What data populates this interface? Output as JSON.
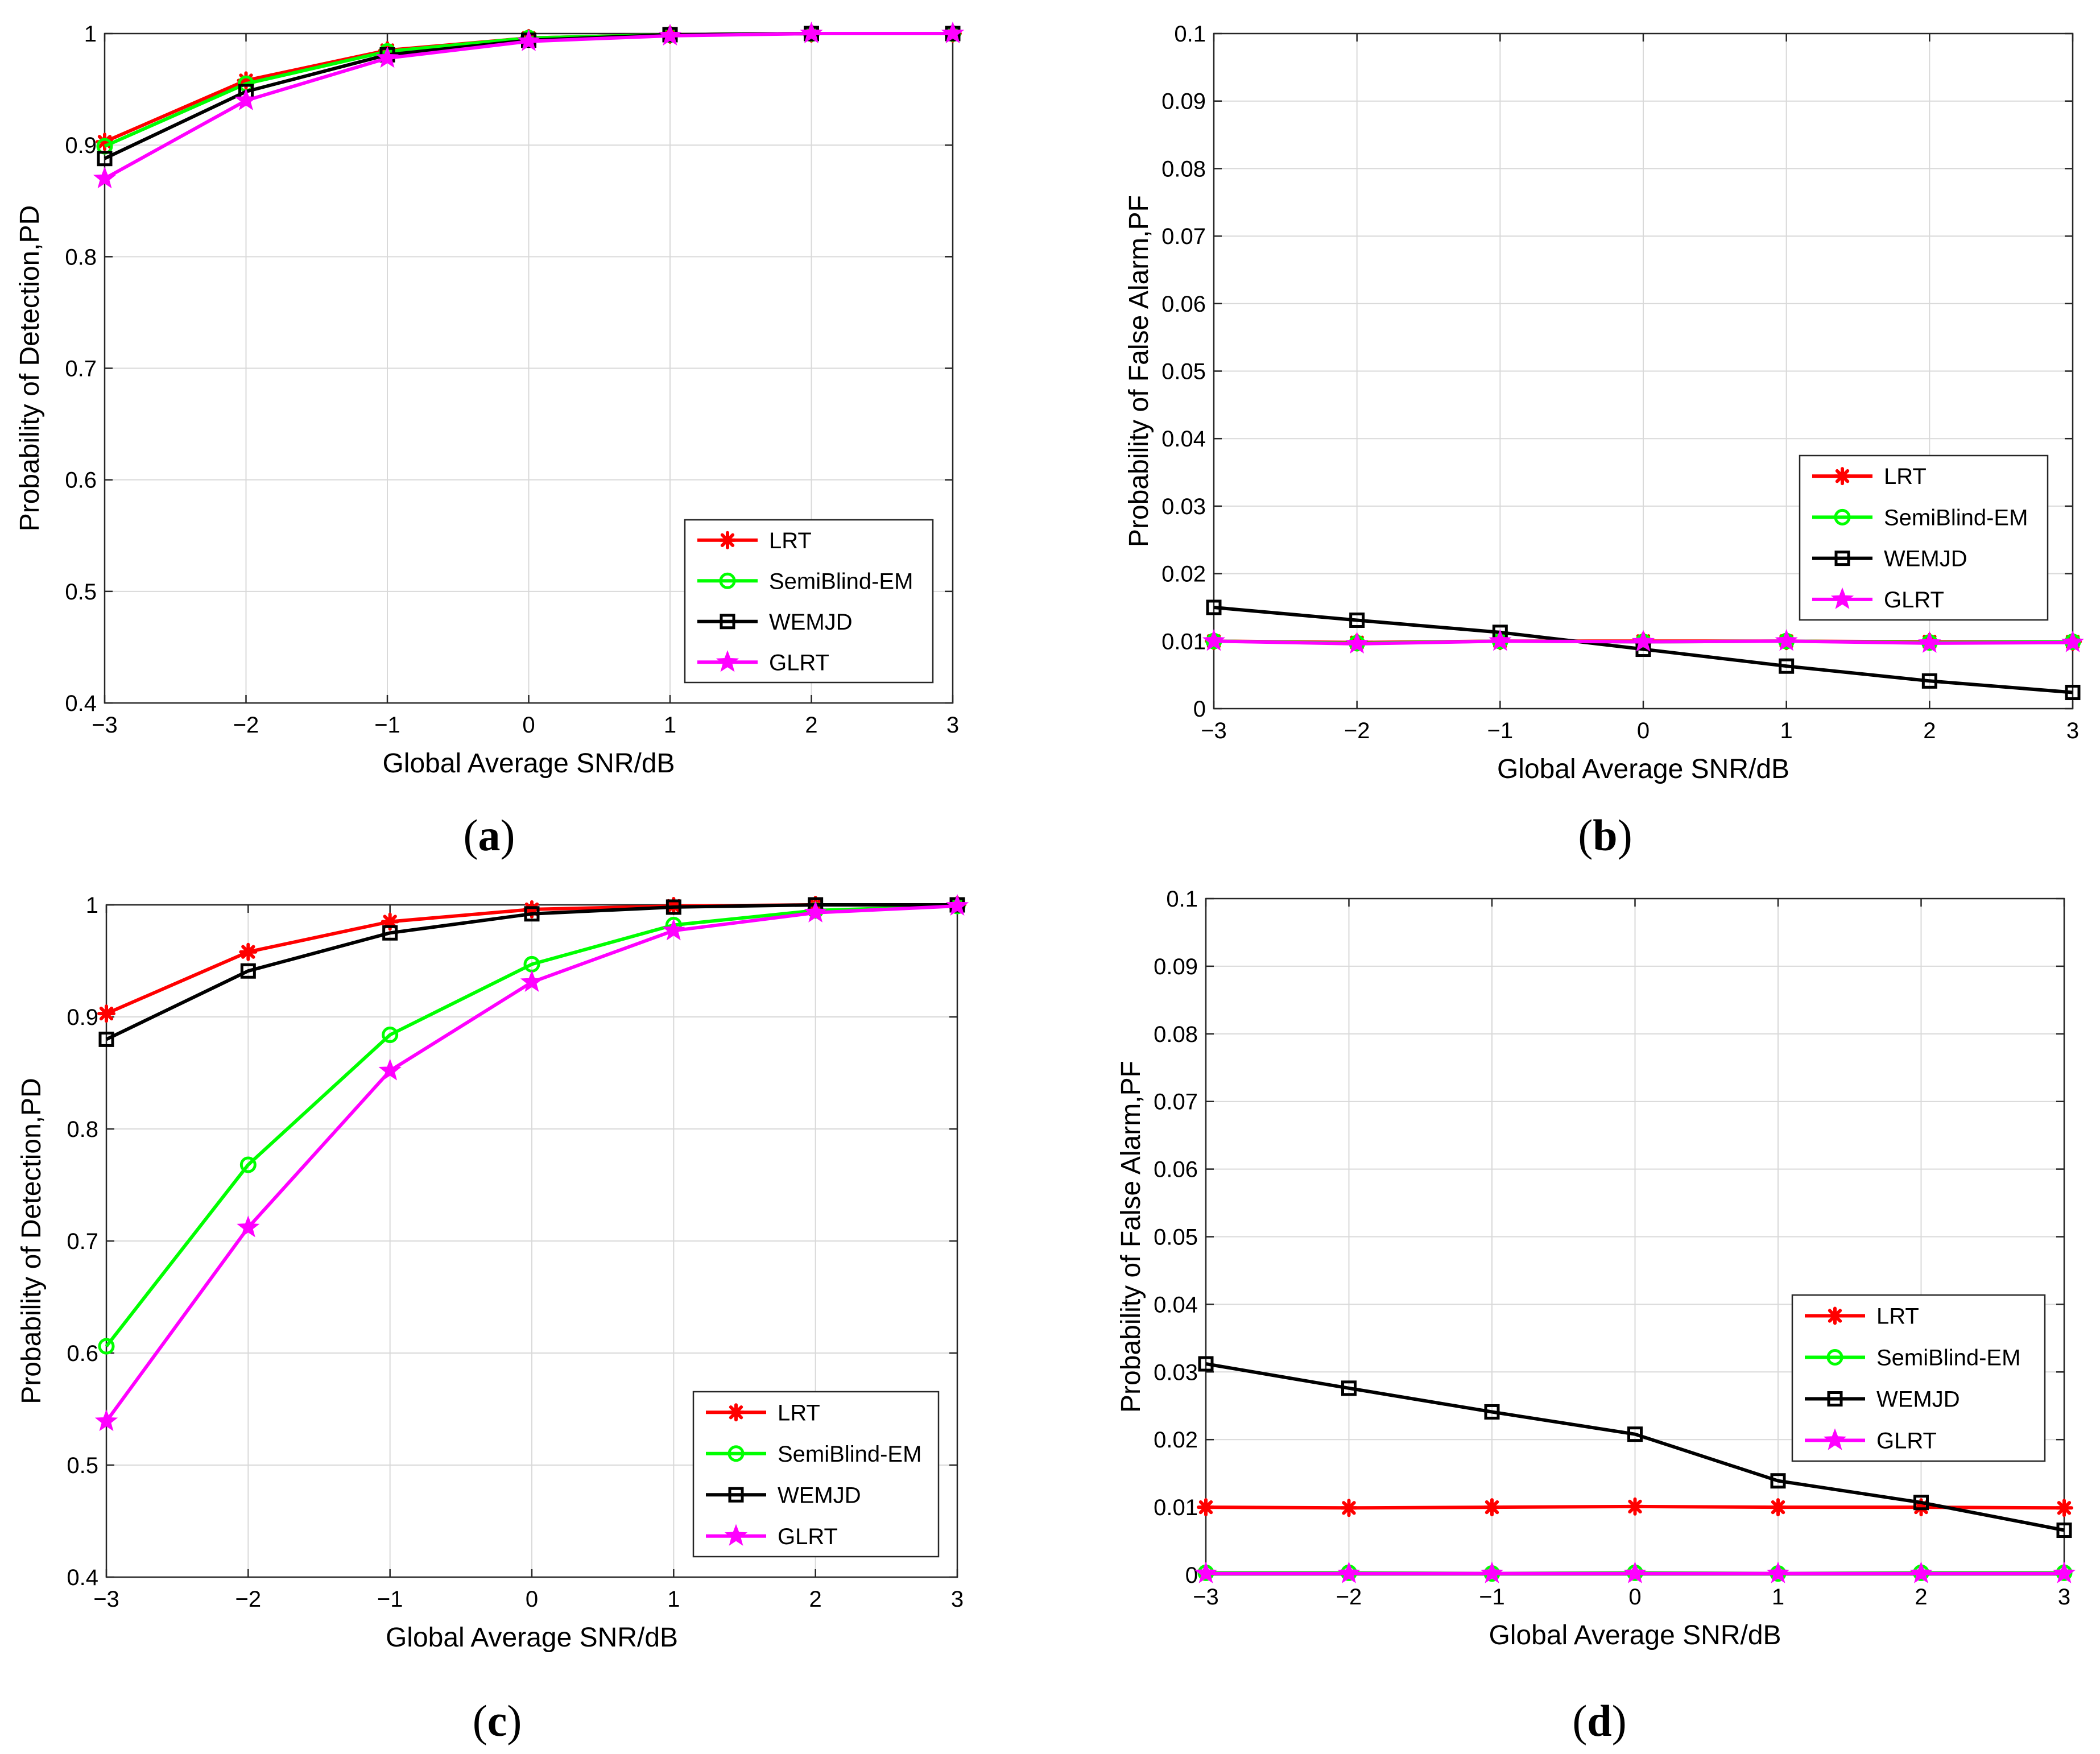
{
  "figure": {
    "panel_captions": [
      {
        "open": "(",
        "letter": "a",
        "close": ")"
      },
      {
        "open": "(",
        "letter": "b",
        "close": ")"
      },
      {
        "open": "(",
        "letter": "c",
        "close": ")"
      },
      {
        "open": "(",
        "letter": "d",
        "close": ")"
      }
    ]
  },
  "series_styles": {
    "LRT": {
      "color": "#ff0000",
      "marker": "asterisk-icon"
    },
    "SemiBlind-EM": {
      "color": "#00ff00",
      "marker": "circle-icon"
    },
    "WEMJD": {
      "color": "#000000",
      "marker": "square-icon"
    },
    "GLRT": {
      "color": "#ff00ff",
      "marker": "star-icon"
    }
  },
  "chart_data": [
    {
      "type": "line",
      "panel": "a",
      "title": "",
      "xlabel": "Global Average SNR/dB",
      "ylabel": "Probability of Detection,PD",
      "xlim": [
        -3,
        3
      ],
      "ylim": [
        0.4,
        1
      ],
      "grid": true,
      "xticks": [
        -3,
        -2,
        -1,
        0,
        1,
        2,
        3
      ],
      "xtick_labels": [
        "−3",
        "−2",
        "−1",
        "0",
        "1",
        "2",
        "3"
      ],
      "yticks": [
        0.4,
        0.5,
        0.6,
        0.7,
        0.8,
        0.9,
        1
      ],
      "ytick_labels": [
        "0.4",
        "0.5",
        "0.6",
        "0.7",
        "0.8",
        "0.9",
        "1"
      ],
      "legend_position": "bottom-right",
      "x": [
        -3,
        -2,
        -1,
        0,
        1,
        2,
        3
      ],
      "series": [
        {
          "name": "LRT",
          "values": [
            0.903,
            0.958,
            0.985,
            0.996,
            0.999,
            1.0,
            1.0
          ]
        },
        {
          "name": "SemiBlind-EM",
          "values": [
            0.899,
            0.955,
            0.984,
            0.996,
            0.999,
            1.0,
            1.0
          ]
        },
        {
          "name": "WEMJD",
          "values": [
            0.888,
            0.948,
            0.981,
            0.994,
            0.999,
            1.0,
            1.0
          ]
        },
        {
          "name": "GLRT",
          "values": [
            0.87,
            0.94,
            0.978,
            0.993,
            0.998,
            1.0,
            1.0
          ]
        }
      ]
    },
    {
      "type": "line",
      "panel": "b",
      "title": "",
      "xlabel": "Global Average SNR/dB",
      "ylabel": "Probability of False Alarm,PF",
      "xlim": [
        -3,
        3
      ],
      "ylim": [
        0,
        0.1
      ],
      "grid": true,
      "xticks": [
        -3,
        -2,
        -1,
        0,
        1,
        2,
        3
      ],
      "xtick_labels": [
        "−3",
        "−2",
        "−1",
        "0",
        "1",
        "2",
        "3"
      ],
      "yticks": [
        0,
        0.01,
        0.02,
        0.03,
        0.04,
        0.05,
        0.06,
        0.07,
        0.08,
        0.09,
        0.1
      ],
      "ytick_labels": [
        "0",
        "0.01",
        "0.02",
        "0.03",
        "0.04",
        "0.05",
        "0.06",
        "0.07",
        "0.08",
        "0.09",
        "0.1"
      ],
      "legend_position": "right",
      "x": [
        -3,
        -2,
        -1,
        0,
        1,
        2,
        3
      ],
      "series": [
        {
          "name": "LRT",
          "values": [
            0.01,
            0.0098,
            0.01,
            0.01,
            0.01,
            0.0099,
            0.0099
          ]
        },
        {
          "name": "SemiBlind-EM",
          "values": [
            0.01,
            0.0097,
            0.01,
            0.0099,
            0.01,
            0.0098,
            0.0099
          ]
        },
        {
          "name": "WEMJD",
          "values": [
            0.015,
            0.0131,
            0.0113,
            0.0088,
            0.0063,
            0.0041,
            0.0024
          ]
        },
        {
          "name": "GLRT",
          "values": [
            0.01,
            0.0096,
            0.01,
            0.0099,
            0.01,
            0.0097,
            0.0098
          ]
        }
      ]
    },
    {
      "type": "line",
      "panel": "c",
      "title": "",
      "xlabel": "Global Average SNR/dB",
      "ylabel": "Probability of Detection,PD",
      "xlim": [
        -3,
        3
      ],
      "ylim": [
        0.4,
        1
      ],
      "grid": true,
      "xticks": [
        -3,
        -2,
        -1,
        0,
        1,
        2,
        3
      ],
      "xtick_labels": [
        "−3",
        "−2",
        "−1",
        "0",
        "1",
        "2",
        "3"
      ],
      "yticks": [
        0.4,
        0.5,
        0.6,
        0.7,
        0.8,
        0.9,
        1
      ],
      "ytick_labels": [
        "0.4",
        "0.5",
        "0.6",
        "0.7",
        "0.8",
        "0.9",
        "1"
      ],
      "legend_position": "bottom-right",
      "x": [
        -3,
        -2,
        -1,
        0,
        1,
        2,
        3
      ],
      "series": [
        {
          "name": "LRT",
          "values": [
            0.903,
            0.958,
            0.985,
            0.996,
            0.999,
            1.0,
            1.0
          ]
        },
        {
          "name": "SemiBlind-EM",
          "values": [
            0.606,
            0.768,
            0.884,
            0.947,
            0.982,
            0.995,
            0.999
          ]
        },
        {
          "name": "WEMJD",
          "values": [
            0.88,
            0.941,
            0.975,
            0.992,
            0.998,
            1.0,
            1.0
          ]
        },
        {
          "name": "GLRT",
          "values": [
            0.539,
            0.712,
            0.852,
            0.931,
            0.977,
            0.993,
            0.999
          ]
        }
      ]
    },
    {
      "type": "line",
      "panel": "d",
      "title": "",
      "xlabel": "Global Average SNR/dB",
      "ylabel": "Probability of False Alarm,PF",
      "xlim": [
        -3,
        3
      ],
      "ylim": [
        0,
        0.1
      ],
      "grid": true,
      "xticks": [
        -3,
        -2,
        -1,
        0,
        1,
        2,
        3
      ],
      "xtick_labels": [
        "−3",
        "−2",
        "−1",
        "0",
        "1",
        "2",
        "3"
      ],
      "yticks": [
        0,
        0.01,
        0.02,
        0.03,
        0.04,
        0.05,
        0.06,
        0.07,
        0.08,
        0.09,
        0.1
      ],
      "ytick_labels": [
        "0",
        "0.01",
        "0.02",
        "0.03",
        "0.04",
        "0.05",
        "0.06",
        "0.07",
        "0.08",
        "0.09",
        "0.1"
      ],
      "legend_position": "right",
      "x": [
        -3,
        -2,
        -1,
        0,
        1,
        2,
        3
      ],
      "series": [
        {
          "name": "LRT",
          "values": [
            0.01,
            0.0099,
            0.01,
            0.0101,
            0.01,
            0.01,
            0.0099
          ]
        },
        {
          "name": "SemiBlind-EM",
          "values": [
            0.0003,
            0.0003,
            0.0002,
            0.0003,
            0.0002,
            0.0003,
            0.0003
          ]
        },
        {
          "name": "WEMJD",
          "values": [
            0.0312,
            0.0276,
            0.0241,
            0.0208,
            0.0139,
            0.0107,
            0.0066
          ]
        },
        {
          "name": "GLRT",
          "values": [
            0.0002,
            0.0002,
            0.0002,
            0.0002,
            0.0002,
            0.0002,
            0.0002
          ]
        }
      ]
    }
  ]
}
